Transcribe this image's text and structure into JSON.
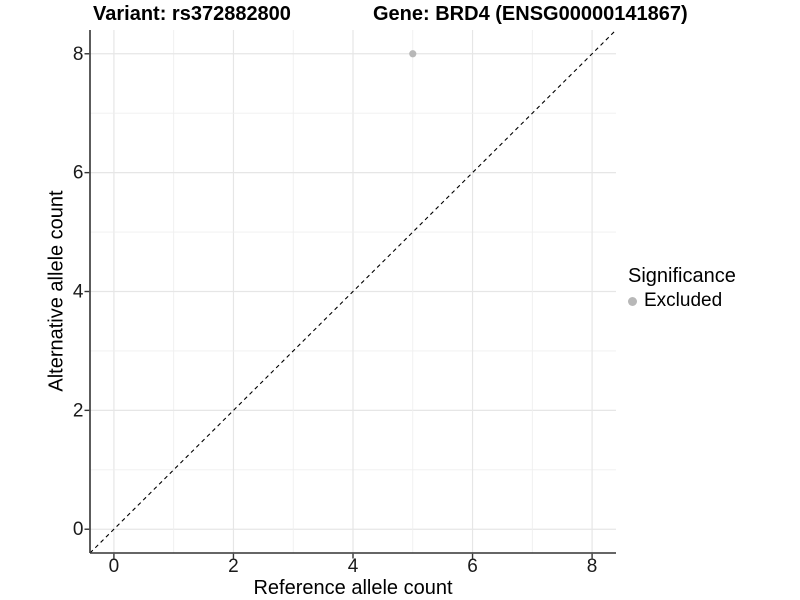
{
  "chart_data": {
    "type": "scatter",
    "title_left": "Variant: rs372882800",
    "title_right": "Gene: BRD4 (ENSG00000141867)",
    "xlabel": "Reference allele count",
    "ylabel": "Alternative allele count",
    "xlim": [
      -0.4,
      8.4
    ],
    "ylim": [
      -0.4,
      8.4
    ],
    "x_ticks": [
      0,
      2,
      4,
      6,
      8
    ],
    "y_ticks": [
      0,
      2,
      4,
      6,
      8
    ],
    "gridline_values": [
      0,
      1,
      2,
      3,
      4,
      5,
      6,
      7,
      8
    ],
    "grid": true,
    "points": [
      {
        "x": 5,
        "y": 8,
        "series": "Excluded"
      }
    ],
    "reference_line": {
      "slope": 1,
      "intercept": 0,
      "style": "dashed"
    },
    "legend": {
      "title": "Significance",
      "position": "right",
      "entries": [
        {
          "label": "Excluded",
          "color": "#b8b8b8",
          "marker": "circle"
        }
      ]
    },
    "colors": {
      "background": "#ffffff",
      "grid_major": "#e6e6e6",
      "grid_minor": "#efefef",
      "axis_line": "#333333",
      "tick_text": "#1a1a1a",
      "point": "#b8b8b8",
      "reference_line": "#000000"
    }
  }
}
